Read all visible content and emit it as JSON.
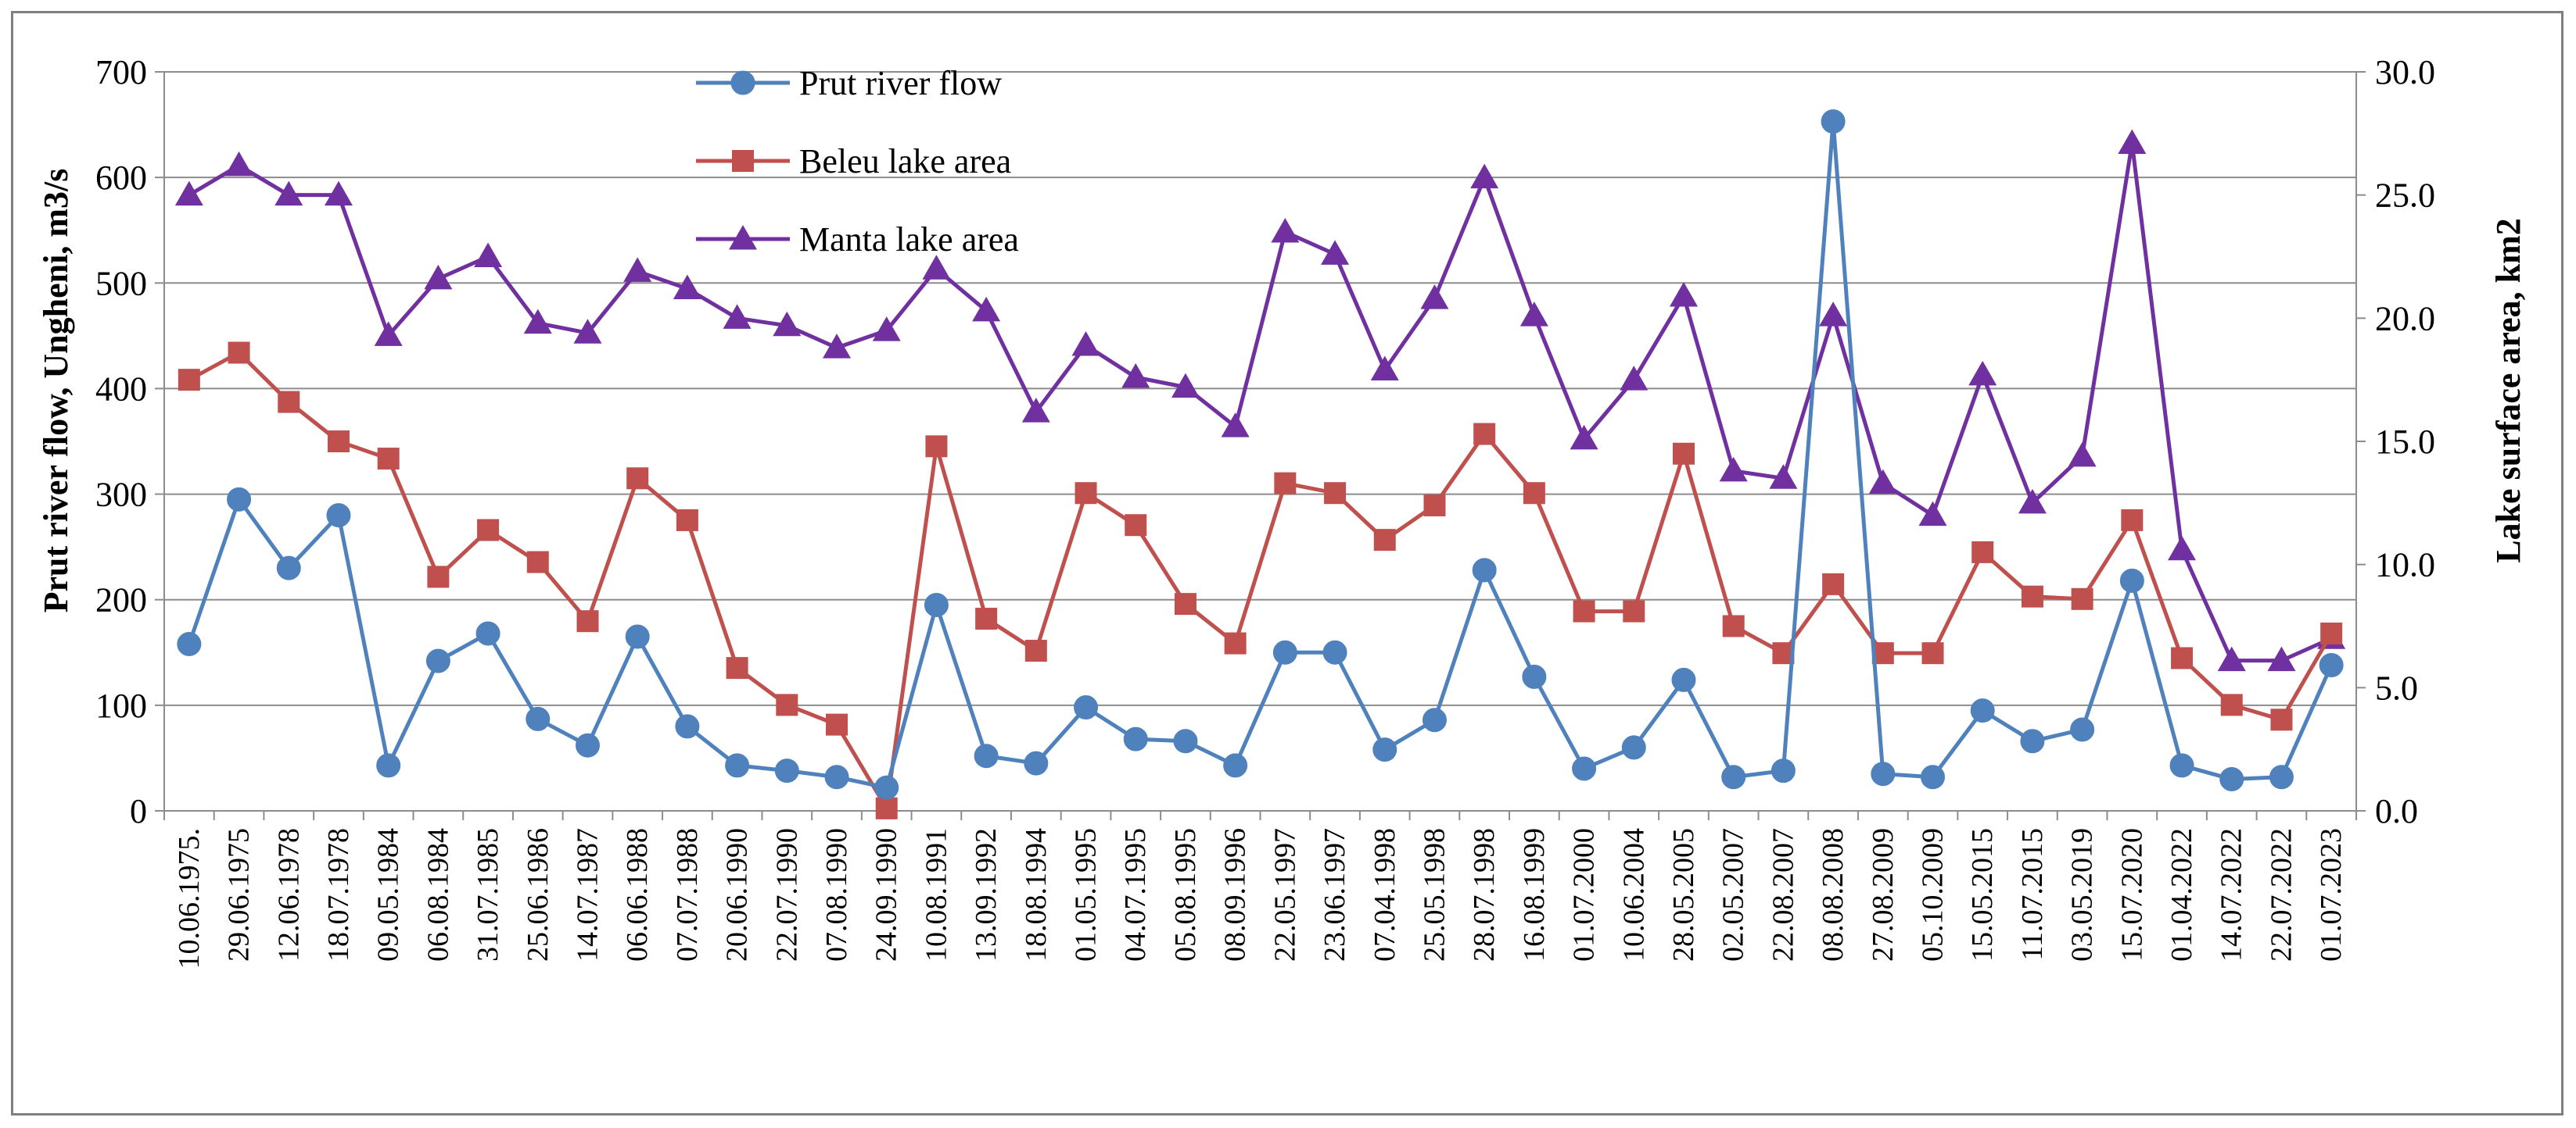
{
  "chart_data": {
    "type": "line",
    "title": "",
    "ylabel_left": "Prut river flow, Ungheni, m3/s",
    "ylabel_right": "Lake surface area, km2",
    "ylim_left": [
      0,
      700
    ],
    "ylim_right": [
      0.0,
      30.0
    ],
    "yticks_left": [
      "0",
      "100",
      "200",
      "300",
      "400",
      "500",
      "600",
      "700"
    ],
    "yticks_right": [
      "0.0",
      "5.0",
      "10.0",
      "15.0",
      "20.0",
      "25.0",
      "30.0"
    ],
    "grid": "horizontal",
    "legend": "top-center",
    "categories": [
      "10.06.1975.",
      "29.06.1975",
      "12.06.1978",
      "18.07.1978",
      "09.05.1984",
      "06.08.1984",
      "31.07.1985",
      "25.06.1986",
      "14.07.1987",
      "06.06.1988",
      "07.07.1988",
      "20.06.1990",
      "22.07.1990",
      "07.08.1990",
      "24.09.1990",
      "10.08.1991",
      "13.09.1992",
      "18.08.1994",
      "01.05.1995",
      "04.07.1995",
      "05.08.1995",
      "08.09.1996",
      "22.05.1997",
      "23.06.1997",
      "07.04.1998",
      "25.05.1998",
      "28.07.1998",
      "16.08.1999",
      "01.07.2000",
      "10.06.2004",
      "28.05.2005",
      "02.05.2007",
      "22.08.2007",
      "08.08.2008",
      "27.08.2009",
      "05.10.2009",
      "15.05.2015",
      "11.07.2015",
      "03.05.2019",
      "15.07.2020",
      "01.04.2022",
      "14.07.2022",
      "22.07.2022",
      "01.07.2023"
    ],
    "series": [
      {
        "name": "Prut river flow",
        "axis": "left",
        "color": "#4f81bd",
        "marker": "circle",
        "values": [
          158,
          295,
          230,
          280,
          43,
          142,
          168,
          87,
          62,
          165,
          80,
          43,
          38,
          32,
          22,
          195,
          52,
          45,
          98,
          68,
          66,
          43,
          150,
          150,
          58,
          86,
          228,
          127,
          40,
          60,
          124,
          32,
          38,
          653,
          35,
          32,
          95,
          66,
          77,
          218,
          43,
          30,
          32,
          138
        ]
      },
      {
        "name": "Beleu lake area",
        "axis": "right",
        "color": "#c0504d",
        "marker": "square",
        "values": [
          17.5,
          18.6,
          16.6,
          15.0,
          14.3,
          9.5,
          11.4,
          10.1,
          7.7,
          13.5,
          11.8,
          5.8,
          4.3,
          3.5,
          0.1,
          14.8,
          7.8,
          6.5,
          12.9,
          11.6,
          8.4,
          6.8,
          13.3,
          12.9,
          11.0,
          12.4,
          15.3,
          12.9,
          8.1,
          8.1,
          14.5,
          7.5,
          6.4,
          9.2,
          6.4,
          6.4,
          10.5,
          8.7,
          8.6,
          11.8,
          6.2,
          4.3,
          3.7,
          7.2
        ]
      },
      {
        "name": "Manta lake area",
        "axis": "right",
        "color": "#7030a0",
        "marker": "triangle",
        "values": [
          25.0,
          26.2,
          25.0,
          25.0,
          19.3,
          21.6,
          22.5,
          19.8,
          19.4,
          21.9,
          21.2,
          20.0,
          19.7,
          18.8,
          19.5,
          22.0,
          20.3,
          16.2,
          18.9,
          17.6,
          17.2,
          15.6,
          23.5,
          22.6,
          17.9,
          20.8,
          25.7,
          20.1,
          15.1,
          17.5,
          20.9,
          13.8,
          13.5,
          20.1,
          13.3,
          12.0,
          17.7,
          12.5,
          14.4,
          27.1,
          10.6,
          6.1,
          6.1,
          7.0
        ]
      }
    ]
  }
}
